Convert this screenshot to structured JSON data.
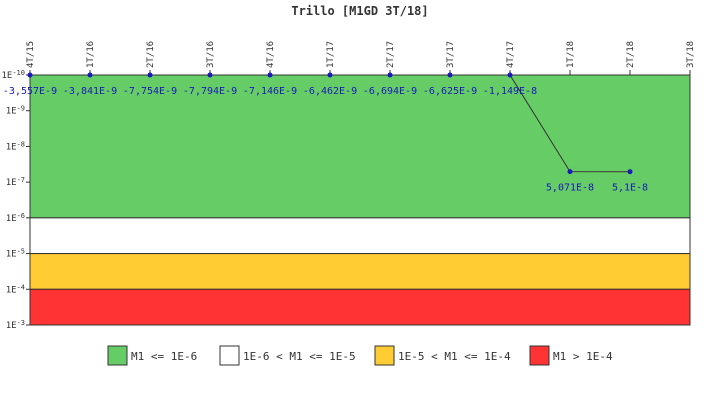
{
  "chart_data": {
    "type": "line",
    "title": "Trillo [M1GD 3T/18]",
    "xlabel": "",
    "ylabel": "",
    "scale": "log",
    "y_inverted": true,
    "ylim": [
      "1E-10",
      "1E-3"
    ],
    "y_ticks": [
      "1E-10",
      "1E-9",
      "1E-8",
      "1E-7",
      "1E-6",
      "1E-5",
      "1E-4",
      "1E-3"
    ],
    "categories": [
      "4T/15",
      "1T/16",
      "2T/16",
      "3T/16",
      "4T/16",
      "1T/17",
      "2T/17",
      "3T/17",
      "4T/17",
      "1T/18",
      "2T/18",
      "3T/18"
    ],
    "series": [
      {
        "values": [
          -3.557e-09,
          -3.841e-09,
          -7.754e-09,
          -7.794e-09,
          -7.146e-09,
          -6.462e-09,
          -6.694e-09,
          -6.625e-09,
          -1.149e-08,
          5.071e-08,
          5.1e-08,
          null
        ],
        "labels": [
          "-3,557E-9",
          "-3,841E-9",
          "-7,754E-9",
          "-7,794E-9",
          "-7,146E-9",
          "-6,462E-9",
          "-6,694E-9",
          "-6,625E-9",
          "-1,149E-8",
          "5,071E-8",
          "5,1E-8",
          ""
        ],
        "color": "#1a1ab8"
      }
    ],
    "bands": [
      {
        "from": "1E-10",
        "to": "1E-6",
        "color": "#66cc66",
        "label": "M1 <= 1E-6"
      },
      {
        "from": "1E-6",
        "to": "1E-5",
        "color": "#ffffff",
        "label": "1E-6 < M1 <= 1E-5"
      },
      {
        "from": "1E-5",
        "to": "1E-4",
        "color": "#ffcc33",
        "label": "1E-5 < M1 <= 1E-4"
      },
      {
        "from": "1E-4",
        "to": "1E-3",
        "color": "#ff3333",
        "label": "M1 > 1E-4"
      }
    ],
    "legend_position": "bottom"
  }
}
